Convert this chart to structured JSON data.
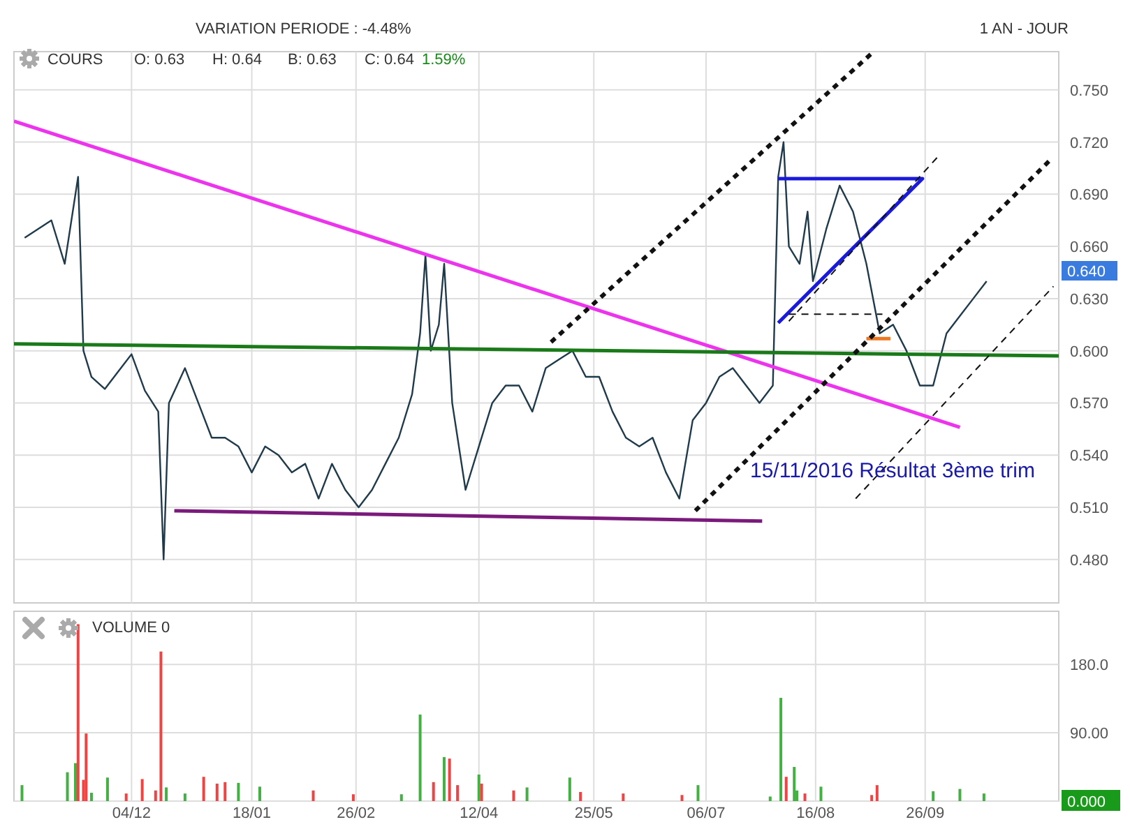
{
  "chart_data": [
    {
      "type": "line",
      "xlim": [
        "2015-10-21",
        "2016-11-15"
      ],
      "ylim": [
        0.455,
        0.772
      ],
      "xticks": [
        {
          "value": "2015-12-04",
          "label": null
        },
        {
          "value": "2016-01-18",
          "label": null
        },
        {
          "value": "2016-02-26",
          "label": null
        },
        {
          "value": "2016-04-12",
          "label": null
        },
        {
          "value": "2016-05-25",
          "label": null
        },
        {
          "value": "2016-07-06",
          "label": null
        },
        {
          "value": "2016-08-16",
          "label": null
        },
        {
          "value": "2016-09-26",
          "label": null
        }
      ],
      "yticks": [
        {
          "value": 0.48,
          "label": "0.480"
        },
        {
          "value": 0.51,
          "label": "0.510"
        },
        {
          "value": 0.54,
          "label": "0.540"
        },
        {
          "value": 0.57,
          "label": "0.570"
        },
        {
          "value": 0.6,
          "label": "0.600"
        },
        {
          "value": 0.63,
          "label": "0.630"
        },
        {
          "value": 0.66,
          "label": "0.660"
        },
        {
          "value": 0.69,
          "label": "0.690"
        },
        {
          "value": 0.72,
          "label": "0.720"
        },
        {
          "value": 0.75,
          "label": "0.750"
        }
      ],
      "tick_labels": "y",
      "grid": true,
      "annotations": [
        "VARIATION PERIODE : -4.48%",
        "1 AN - JOUR",
        "COURS",
        "O: 0.63",
        "H: 0.64",
        "B: 0.63",
        "C: 0.64",
        "1.59%",
        "15/11/2016 Résultat 3ème trim",
        "0.640"
      ],
      "series": [
        {
          "color": "#1f3a4a",
          "line_style": "solid",
          "x": [
            "2015-10-25",
            "2015-10-30",
            "2015-11-04",
            "2015-11-09",
            "2015-11-14",
            "2015-11-16",
            "2015-11-19",
            "2015-11-24",
            "2015-11-29",
            "2015-12-04",
            "2015-12-09",
            "2015-12-14",
            "2015-12-16",
            "2015-12-18",
            "2015-12-24",
            "2015-12-29",
            "2016-01-03",
            "2016-01-08",
            "2016-01-13",
            "2016-01-18",
            "2016-01-23",
            "2016-01-28",
            "2016-02-02",
            "2016-02-07",
            "2016-02-12",
            "2016-02-17",
            "2016-02-22",
            "2016-02-27",
            "2016-03-03",
            "2016-03-08",
            "2016-03-13",
            "2016-03-18",
            "2016-03-21",
            "2016-03-23",
            "2016-03-25",
            "2016-03-28",
            "2016-03-30",
            "2016-04-02",
            "2016-04-07",
            "2016-04-12",
            "2016-04-17",
            "2016-04-22",
            "2016-04-27",
            "2016-05-02",
            "2016-05-07",
            "2016-05-12",
            "2016-05-17",
            "2016-05-22",
            "2016-05-27",
            "2016-06-01",
            "2016-06-06",
            "2016-06-11",
            "2016-06-16",
            "2016-06-21",
            "2016-06-26",
            "2016-07-01",
            "2016-07-06",
            "2016-07-11",
            "2016-07-16",
            "2016-07-21",
            "2016-07-26",
            "2016-07-31",
            "2016-08-02",
            "2016-08-04",
            "2016-08-06",
            "2016-08-10",
            "2016-08-13",
            "2016-08-15",
            "2016-08-20",
            "2016-08-25",
            "2016-08-30",
            "2016-09-04",
            "2016-09-09",
            "2016-09-14",
            "2016-09-19",
            "2016-09-24",
            "2016-09-29",
            "2016-10-04",
            "2016-10-09",
            "2016-10-14",
            "2016-10-19"
          ],
          "values": [
            0.665,
            0.67,
            0.675,
            0.65,
            0.7,
            0.6,
            0.585,
            0.578,
            0.588,
            0.598,
            0.577,
            0.565,
            0.48,
            0.57,
            0.59,
            0.57,
            0.55,
            0.55,
            0.545,
            0.53,
            0.545,
            0.54,
            0.53,
            0.535,
            0.515,
            0.535,
            0.52,
            0.51,
            0.52,
            0.535,
            0.55,
            0.575,
            0.61,
            0.655,
            0.6,
            0.615,
            0.65,
            0.57,
            0.52,
            0.545,
            0.57,
            0.58,
            0.58,
            0.565,
            0.59,
            0.595,
            0.6,
            0.585,
            0.585,
            0.565,
            0.55,
            0.545,
            0.55,
            0.53,
            0.515,
            0.56,
            0.57,
            0.585,
            0.59,
            0.58,
            0.57,
            0.58,
            0.7,
            0.72,
            0.66,
            0.65,
            0.68,
            0.64,
            0.67,
            0.695,
            0.68,
            0.65,
            0.61,
            0.615,
            0.6,
            0.58,
            0.58,
            0.61,
            0.62,
            0.63,
            0.64
          ]
        },
        {
          "color": "#ee33ee",
          "line_style": "solid",
          "x": [
            "2015-10-21",
            "2016-10-09"
          ],
          "values": [
            0.732,
            0.556
          ]
        },
        {
          "color": "#1a7a1a",
          "line_style": "solid",
          "x": [
            "2015-10-21",
            "2016-11-15"
          ],
          "values": [
            0.604,
            0.597
          ]
        },
        {
          "color": "#7a1a7a",
          "line_style": "solid",
          "x": [
            "2015-12-20",
            "2016-07-27"
          ],
          "values": [
            0.508,
            0.502
          ]
        },
        {
          "color": "#1a1add",
          "line_style": "solid",
          "x": [
            "2016-08-02",
            "2016-09-25",
            "2016-08-02"
          ],
          "values": [
            0.699,
            0.699,
            0.616
          ]
        },
        {
          "color": "#ee7722",
          "line_style": "solid",
          "x": [
            "2016-09-04",
            "2016-09-13"
          ],
          "values": [
            0.607,
            0.607
          ]
        },
        {
          "color": "#111111",
          "line_style": "dotted",
          "x": [
            "2016-05-09",
            "2016-09-06"
          ],
          "values": [
            0.605,
            0.771
          ]
        },
        {
          "color": "#111111",
          "line_style": "dotted",
          "x": [
            "2016-07-02",
            "2016-11-12"
          ],
          "values": [
            0.508,
            0.71
          ]
        },
        {
          "color": "#111111",
          "line_style": "dashed",
          "x": [
            "2016-08-31",
            "2016-11-13"
          ],
          "values": [
            0.515,
            0.637
          ]
        },
        {
          "color": "#111111",
          "line_style": "dashed",
          "x": [
            "2016-08-06",
            "2016-10-01"
          ],
          "values": [
            0.617,
            0.712
          ]
        },
        {
          "color": "#111111",
          "line_style": "dashed",
          "x": [
            "2016-08-06",
            "2016-09-10"
          ],
          "values": [
            0.621,
            0.621
          ]
        }
      ]
    },
    {
      "type": "bar",
      "xlim": [
        "2015-10-21",
        "2016-11-15"
      ],
      "ylim": [
        0,
        250
      ],
      "xticks": [
        {
          "value": "2015-12-04",
          "label": "04/12"
        },
        {
          "value": "2016-01-18",
          "label": "18/01"
        },
        {
          "value": "2016-02-26",
          "label": "26/02"
        },
        {
          "value": "2016-04-12",
          "label": "12/04"
        },
        {
          "value": "2016-05-25",
          "label": "25/05"
        },
        {
          "value": "2016-07-06",
          "label": "06/07"
        },
        {
          "value": "2016-08-16",
          "label": "16/08"
        },
        {
          "value": "2016-09-26",
          "label": "26/09"
        }
      ],
      "yticks": [
        {
          "value": 0,
          "label": "0.000"
        },
        {
          "value": 90,
          "label": "90.00"
        },
        {
          "value": 180,
          "label": "180.0"
        }
      ],
      "grid": true,
      "annotations": [
        "VOLUME 0"
      ],
      "x": [
        "2015-10-24",
        "2015-11-10",
        "2015-11-13",
        "2015-11-14",
        "2015-11-16",
        "2015-11-17",
        "2015-11-19",
        "2015-11-25",
        "2015-12-02",
        "2015-12-08",
        "2015-12-13",
        "2015-12-15",
        "2015-12-17",
        "2015-12-24",
        "2015-12-31",
        "2016-01-05",
        "2016-01-08",
        "2016-01-13",
        "2016-01-21",
        "2016-02-10",
        "2016-02-25",
        "2016-03-14",
        "2016-03-21",
        "2016-03-26",
        "2016-03-30",
        "2016-04-01",
        "2016-04-04",
        "2016-04-12",
        "2016-04-13",
        "2016-04-25",
        "2016-04-30",
        "2016-05-16",
        "2016-05-20",
        "2016-06-05",
        "2016-06-27",
        "2016-07-03",
        "2016-07-30",
        "2016-08-03",
        "2016-08-05",
        "2016-08-08",
        "2016-08-09",
        "2016-08-12",
        "2016-08-18",
        "2016-09-06",
        "2016-09-08",
        "2016-09-29",
        "2016-10-09",
        "2016-10-18"
      ],
      "values": [
        21,
        38,
        50,
        233,
        28,
        89,
        11,
        31,
        10,
        29,
        14,
        197,
        18,
        10,
        32,
        23,
        25,
        24,
        19,
        14,
        9,
        9,
        114,
        25,
        58,
        56,
        21,
        35,
        23,
        14,
        18,
        31,
        12,
        10,
        8,
        21,
        6,
        136,
        32,
        45,
        14,
        10,
        19,
        8,
        21,
        13,
        16,
        10
      ],
      "colors": [
        "#44b044",
        "#44b044",
        "#44b044",
        "#ee4444",
        "#ee4444",
        "#ee4444",
        "#44b044",
        "#44b044",
        "#ee4444",
        "#ee4444",
        "#ee4444",
        "#ee4444",
        "#44b044",
        "#44b044",
        "#ee4444",
        "#ee4444",
        "#ee4444",
        "#44b044",
        "#44b044",
        "#ee4444",
        "#ee4444",
        "#44b044",
        "#44b044",
        "#ee4444",
        "#44b044",
        "#ee4444",
        "#ee4444",
        "#44b044",
        "#ee4444",
        "#ee4444",
        "#44b044",
        "#44b044",
        "#ee4444",
        "#ee4444",
        "#ee4444",
        "#44b044",
        "#44b044",
        "#44b044",
        "#ee4444",
        "#44b044",
        "#44b044",
        "#ee4444",
        "#44b044",
        "#ee4444",
        "#ee4444",
        "#44b044",
        "#44b044",
        "#44b044"
      ]
    }
  ]
}
